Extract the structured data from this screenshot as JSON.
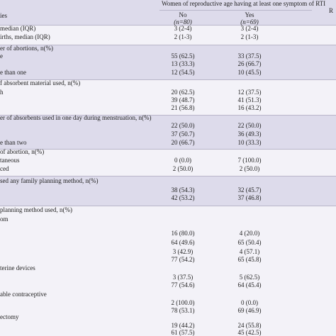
{
  "header": {
    "title": "Women of reproductive age  having at least one symptom of RTI",
    "edge": "R",
    "variable": "ies",
    "no": "No",
    "yes": "Yes",
    "no_n": "(n=80)",
    "yes_n": "(n=69)"
  },
  "table": {
    "rows": [
      {
        "label": "median (IQR)",
        "no": "3 (2-4)",
        "yes": "3 (2-4)"
      },
      {
        "label": "irths, median (IQR)",
        "no": "2 (1-3)",
        "yes": "2 (1-3)"
      },
      {
        "label": "er of abortions, n(%)"
      },
      {
        "label": "e",
        "no": "55 (62.5)",
        "yes": "33 (37.5)"
      },
      {
        "no": "13 (33.3)",
        "yes": "26 (66.7)"
      },
      {
        "label": "e than one",
        "no": "12 (54.5)",
        "yes": "10 (45.5)"
      },
      {
        "label": "f absorbent material used, n(%)"
      },
      {
        "label": "h",
        "no": "20 (62.5)",
        "yes": "12 (37.5)"
      },
      {
        "no": "39 (48.7)",
        "yes": "41 (51.3)"
      },
      {
        "no": "21 (56.8)",
        "yes": "16 (43.2)"
      },
      {
        "label": "er of absorbents used in one day during menstruation, n(%)"
      },
      {
        "no": "22 (50.0)",
        "yes": "22 (50.0)"
      },
      {
        "no": "37 (50.7)",
        "yes": "36 (49.3)"
      },
      {
        "label": "e than two",
        "no": "20 (66.7)",
        "yes": "10 (33.3)"
      },
      {
        "label": "of abortion, n(%)"
      },
      {
        "label": "taneous",
        "no": "0 (0.0)",
        "yes": "7 (100.0)"
      },
      {
        "label": "ced",
        "no": "2 (50.0)",
        "yes": "2 (50.0)"
      },
      {
        "label": "sed any family planning method, n(%)"
      },
      {
        "no": "38 (54.3)",
        "yes": "32 (45.7)"
      },
      {
        "no": "42 (53.2)",
        "yes": "37 (46.8)"
      },
      {
        "label": "planning method used, n(%)"
      },
      {
        "label": "om"
      },
      {
        "no": "16 (80.0)",
        "yes": "4 (20.0)"
      },
      {
        "no": "64 (49.6)",
        "yes": "65 (50.4)"
      },
      {
        "no": "3 (42.9)",
        "yes": "4 (57.1)"
      },
      {
        "no": "77 (54.2)",
        "yes": "65 (45.8)"
      },
      {
        "label": "terine devices"
      },
      {
        "no": "3 (37.5)",
        "yes": "5 (62.5)"
      },
      {
        "no": "77 (54.6)",
        "yes": "64 (45.4)"
      },
      {
        "label": "able contraceptive"
      },
      {
        "no": "2 (100.0)",
        "yes": "0 (0.0)"
      },
      {
        "no": "78 (53.1)",
        "yes": "69 (46.9)"
      },
      {
        "label": "ectomy"
      },
      {
        "no": "19 (44.2)",
        "yes": "24 (55.8)"
      },
      {
        "no": "61 (57.5)",
        "yes": "45 (42.5)"
      }
    ]
  }
}
